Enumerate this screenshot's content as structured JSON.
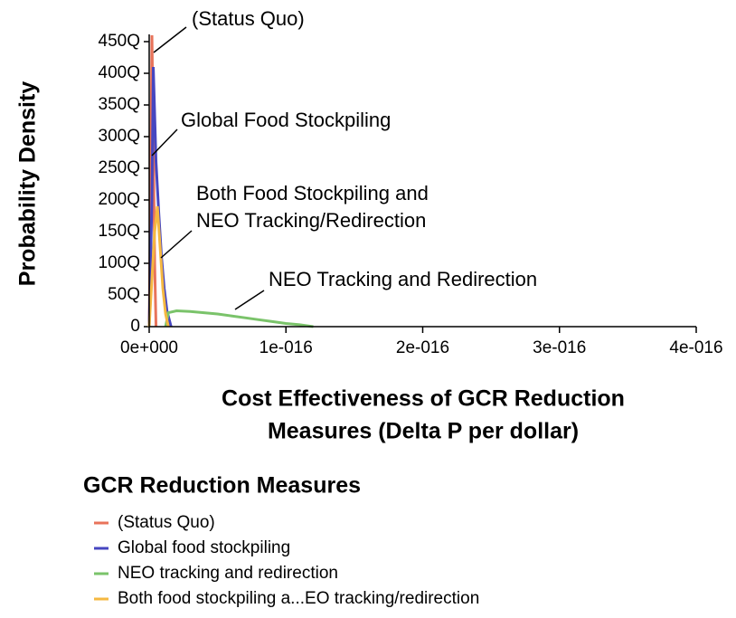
{
  "chart_data": {
    "type": "line",
    "ylabel": "Probability Density",
    "xlabel": [
      "Cost Effectiveness of GCR Reduction",
      "Measures (Delta P per dollar)"
    ],
    "xlim": [
      0,
      4e-16
    ],
    "xticks": [
      {
        "value": 0,
        "label": "0e+000"
      },
      {
        "value": 1e-16,
        "label": "1e-016"
      },
      {
        "value": 2e-16,
        "label": "2e-016"
      },
      {
        "value": 3e-16,
        "label": "3e-016"
      },
      {
        "value": 4e-16,
        "label": "4e-016"
      }
    ],
    "ylim": [
      0,
      4.5e+17
    ],
    "yticks": [
      0,
      {
        "value": 5e+16,
        "label": "50Q"
      },
      {
        "value": 1e+17,
        "label": "100Q"
      },
      {
        "value": 1.5e+17,
        "label": "150Q"
      },
      {
        "value": 2e+17,
        "label": "200Q"
      },
      {
        "value": 2.5e+17,
        "label": "250Q"
      },
      {
        "value": 3e+17,
        "label": "300Q"
      },
      {
        "value": 3.5e+17,
        "label": "350Q"
      },
      {
        "value": 4e+17,
        "label": "400Q"
      },
      {
        "value": 4.5e+17,
        "label": "450Q"
      }
    ],
    "annotations": [
      {
        "lines": [
          "(Status Quo)"
        ]
      },
      {
        "lines": [
          "Global Food Stockpiling"
        ]
      },
      {
        "lines": [
          "Both Food Stockpiling and",
          "NEO Tracking/Redirection"
        ]
      },
      {
        "lines": [
          "NEO Tracking and Redirection"
        ]
      }
    ],
    "legend_title": "GCR Reduction Measures",
    "series": [
      {
        "name": "(Status Quo)",
        "color": "#e8735a",
        "x": [
          0,
          1e-18,
          2e-18,
          3e-18,
          4e-18,
          5e-18
        ],
        "values": [
          0,
          2e+17,
          4.6e+17,
          3e+17,
          1e+17,
          0
        ]
      },
      {
        "name": "Global food stockpiling",
        "color": "#4646c0",
        "x": [
          0,
          2e-18,
          3e-18,
          5e-18,
          7e-18,
          9e-18,
          1.1e-17,
          1.3e-17,
          1.6e-17
        ],
        "values": [
          0,
          2e+17,
          4.1e+17,
          2.6e+17,
          1.8e+17,
          1.1e+17,
          6e+16,
          2.5e+16,
          0
        ]
      },
      {
        "name": "NEO tracking and redirection",
        "color": "#7ac36a",
        "x": [
          1.2e-17,
          1.4e-17,
          2e-17,
          3e-17,
          4e-17,
          5e-17,
          6e-17,
          7e-17,
          8e-17,
          9e-17,
          1e-16,
          1.1e-16,
          1.2e-16
        ],
        "values": [
          0,
          2.2e+16,
          2.5e+16,
          2.4e+16,
          2.2e+16,
          2e+16,
          1.7e+16,
          1.4e+16,
          1.1e+16,
          8000000000000000.0,
          5000000000000000.0,
          3000000000000000.0,
          0
        ]
      },
      {
        "name": "Both food stockpiling a...EO tracking/redirection",
        "color": "#f5b841",
        "x": [
          0,
          4e-18,
          6e-18,
          8e-18,
          1e-17,
          1.2e-17,
          1.4e-17
        ],
        "values": [
          0,
          1.5e+17,
          1.9e+17,
          1.25e+17,
          6e+16,
          2e+16,
          0
        ]
      }
    ]
  }
}
